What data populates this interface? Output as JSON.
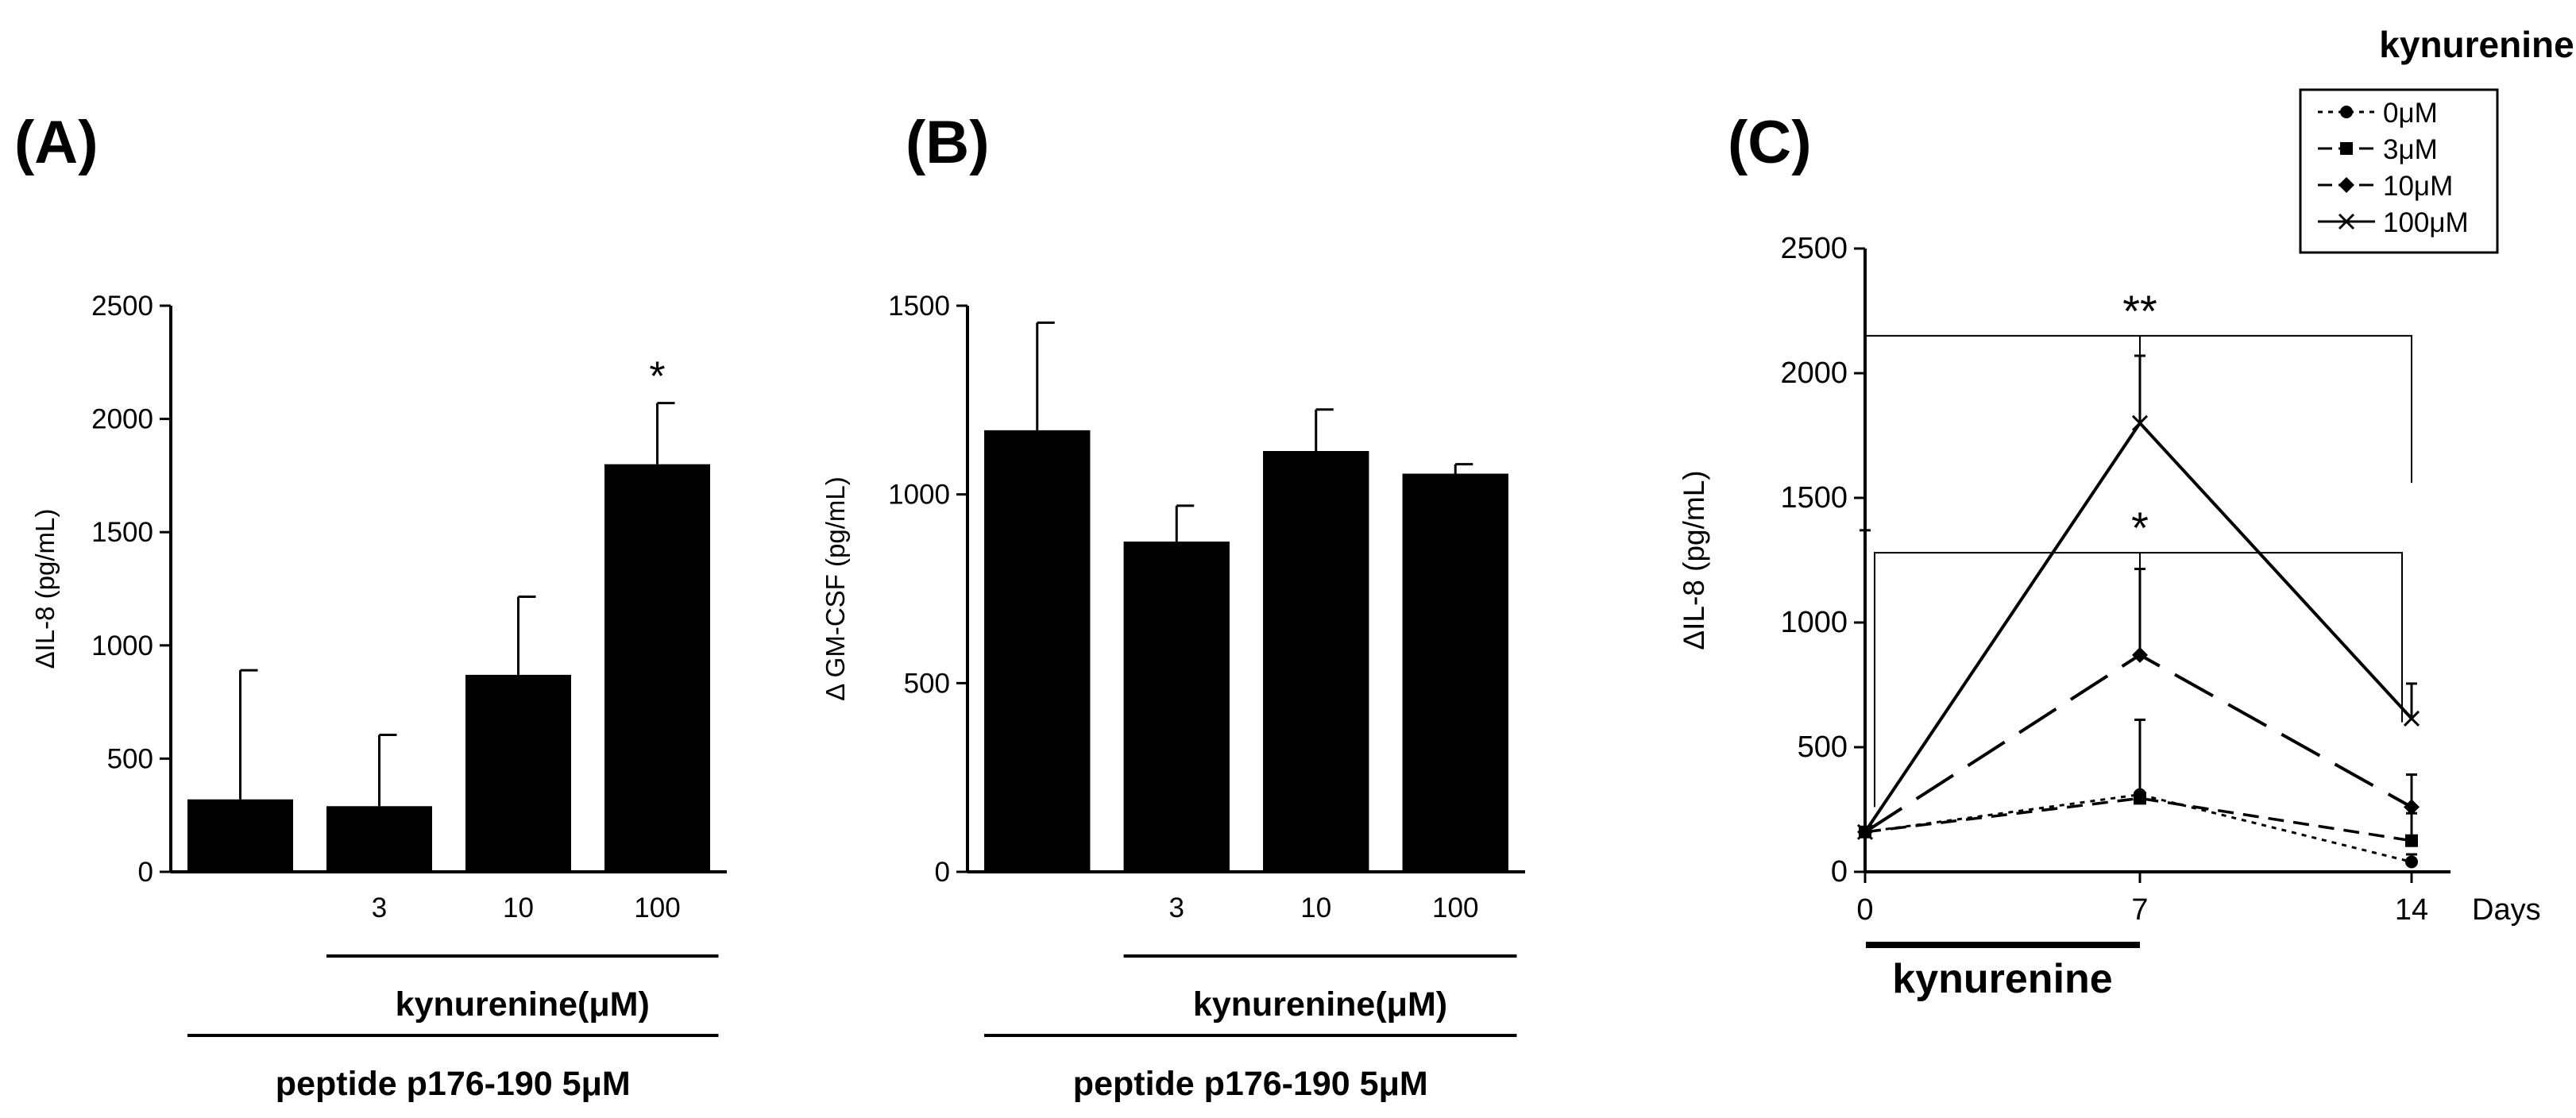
{
  "panels": {
    "a": {
      "label": "(A)"
    },
    "b": {
      "label": "(B)"
    },
    "c": {
      "label": "(C)"
    }
  },
  "chart_data": [
    {
      "id": "A",
      "type": "bar",
      "panel_label": "(A)",
      "ylabel": "ΔIL-8 (pg/mL)",
      "ylim": [
        0,
        2500
      ],
      "yticks": [
        0,
        500,
        1000,
        1500,
        2000,
        2500
      ],
      "categories": [
        "",
        "3",
        "10",
        "100"
      ],
      "values": [
        320,
        290,
        870,
        1800
      ],
      "errors": [
        570,
        315,
        345,
        270
      ],
      "bar_color": "#000000",
      "significance": [
        {
          "index": 3,
          "text": "*"
        }
      ],
      "group_labels": [
        {
          "text": "kynurenine(μM)",
          "span": [
            1,
            3
          ]
        },
        {
          "text": "peptide p176-190 5μM",
          "span": [
            0,
            3
          ]
        }
      ]
    },
    {
      "id": "B",
      "type": "bar",
      "panel_label": "(B)",
      "ylabel": "Δ GM-CSF (pg/mL)",
      "ylim": [
        0,
        1500
      ],
      "yticks": [
        0,
        500,
        1000,
        1500
      ],
      "categories": [
        "",
        "3",
        "10",
        "100"
      ],
      "values": [
        1170,
        875,
        1115,
        1055
      ],
      "errors": [
        285,
        95,
        110,
        25
      ],
      "bar_color": "#000000",
      "group_labels": [
        {
          "text": "kynurenine(μM)",
          "span": [
            1,
            3
          ]
        },
        {
          "text": "peptide p176-190 5μM",
          "span": [
            0,
            3
          ]
        }
      ]
    },
    {
      "id": "C",
      "type": "line",
      "panel_label": "(C)",
      "ylabel": "ΔIL-8 (pg/mL)",
      "xlabel": "Days",
      "ylim": [
        0,
        2500
      ],
      "yticks": [
        0,
        500,
        1000,
        1500,
        2000,
        2500
      ],
      "x": [
        0,
        7,
        14
      ],
      "xticks": [
        0,
        7,
        14
      ],
      "legend_title": "kynurenine",
      "legend_position": "top-right",
      "series": [
        {
          "name": "0μM",
          "values": [
            160,
            310,
            40
          ],
          "errors": [
            0,
            300,
            30
          ],
          "dash": "6,7",
          "marker": "circle",
          "width": 3
        },
        {
          "name": "3μM",
          "values": [
            160,
            295,
            125
          ],
          "errors": [
            0,
            0,
            110
          ],
          "dash": "20,12",
          "marker": "square",
          "width": 3.5
        },
        {
          "name": "10μM",
          "values": [
            160,
            870,
            260
          ],
          "errors": [
            0,
            345,
            130
          ],
          "dash": "55,22",
          "marker": "diamond",
          "width": 4
        },
        {
          "name": "100μM",
          "values": [
            160,
            1800,
            615
          ],
          "errors": [
            1210,
            270,
            140
          ],
          "dash": "",
          "marker": "x",
          "width": 4
        }
      ],
      "brackets": [
        {
          "from": 0,
          "to": 14,
          "mid": 7,
          "y": 2150,
          "text": "**"
        },
        {
          "from": 0,
          "to": 14,
          "mid": 7,
          "y": 1280,
          "text": "*"
        }
      ],
      "below_axis_label": "kynurenine"
    }
  ]
}
